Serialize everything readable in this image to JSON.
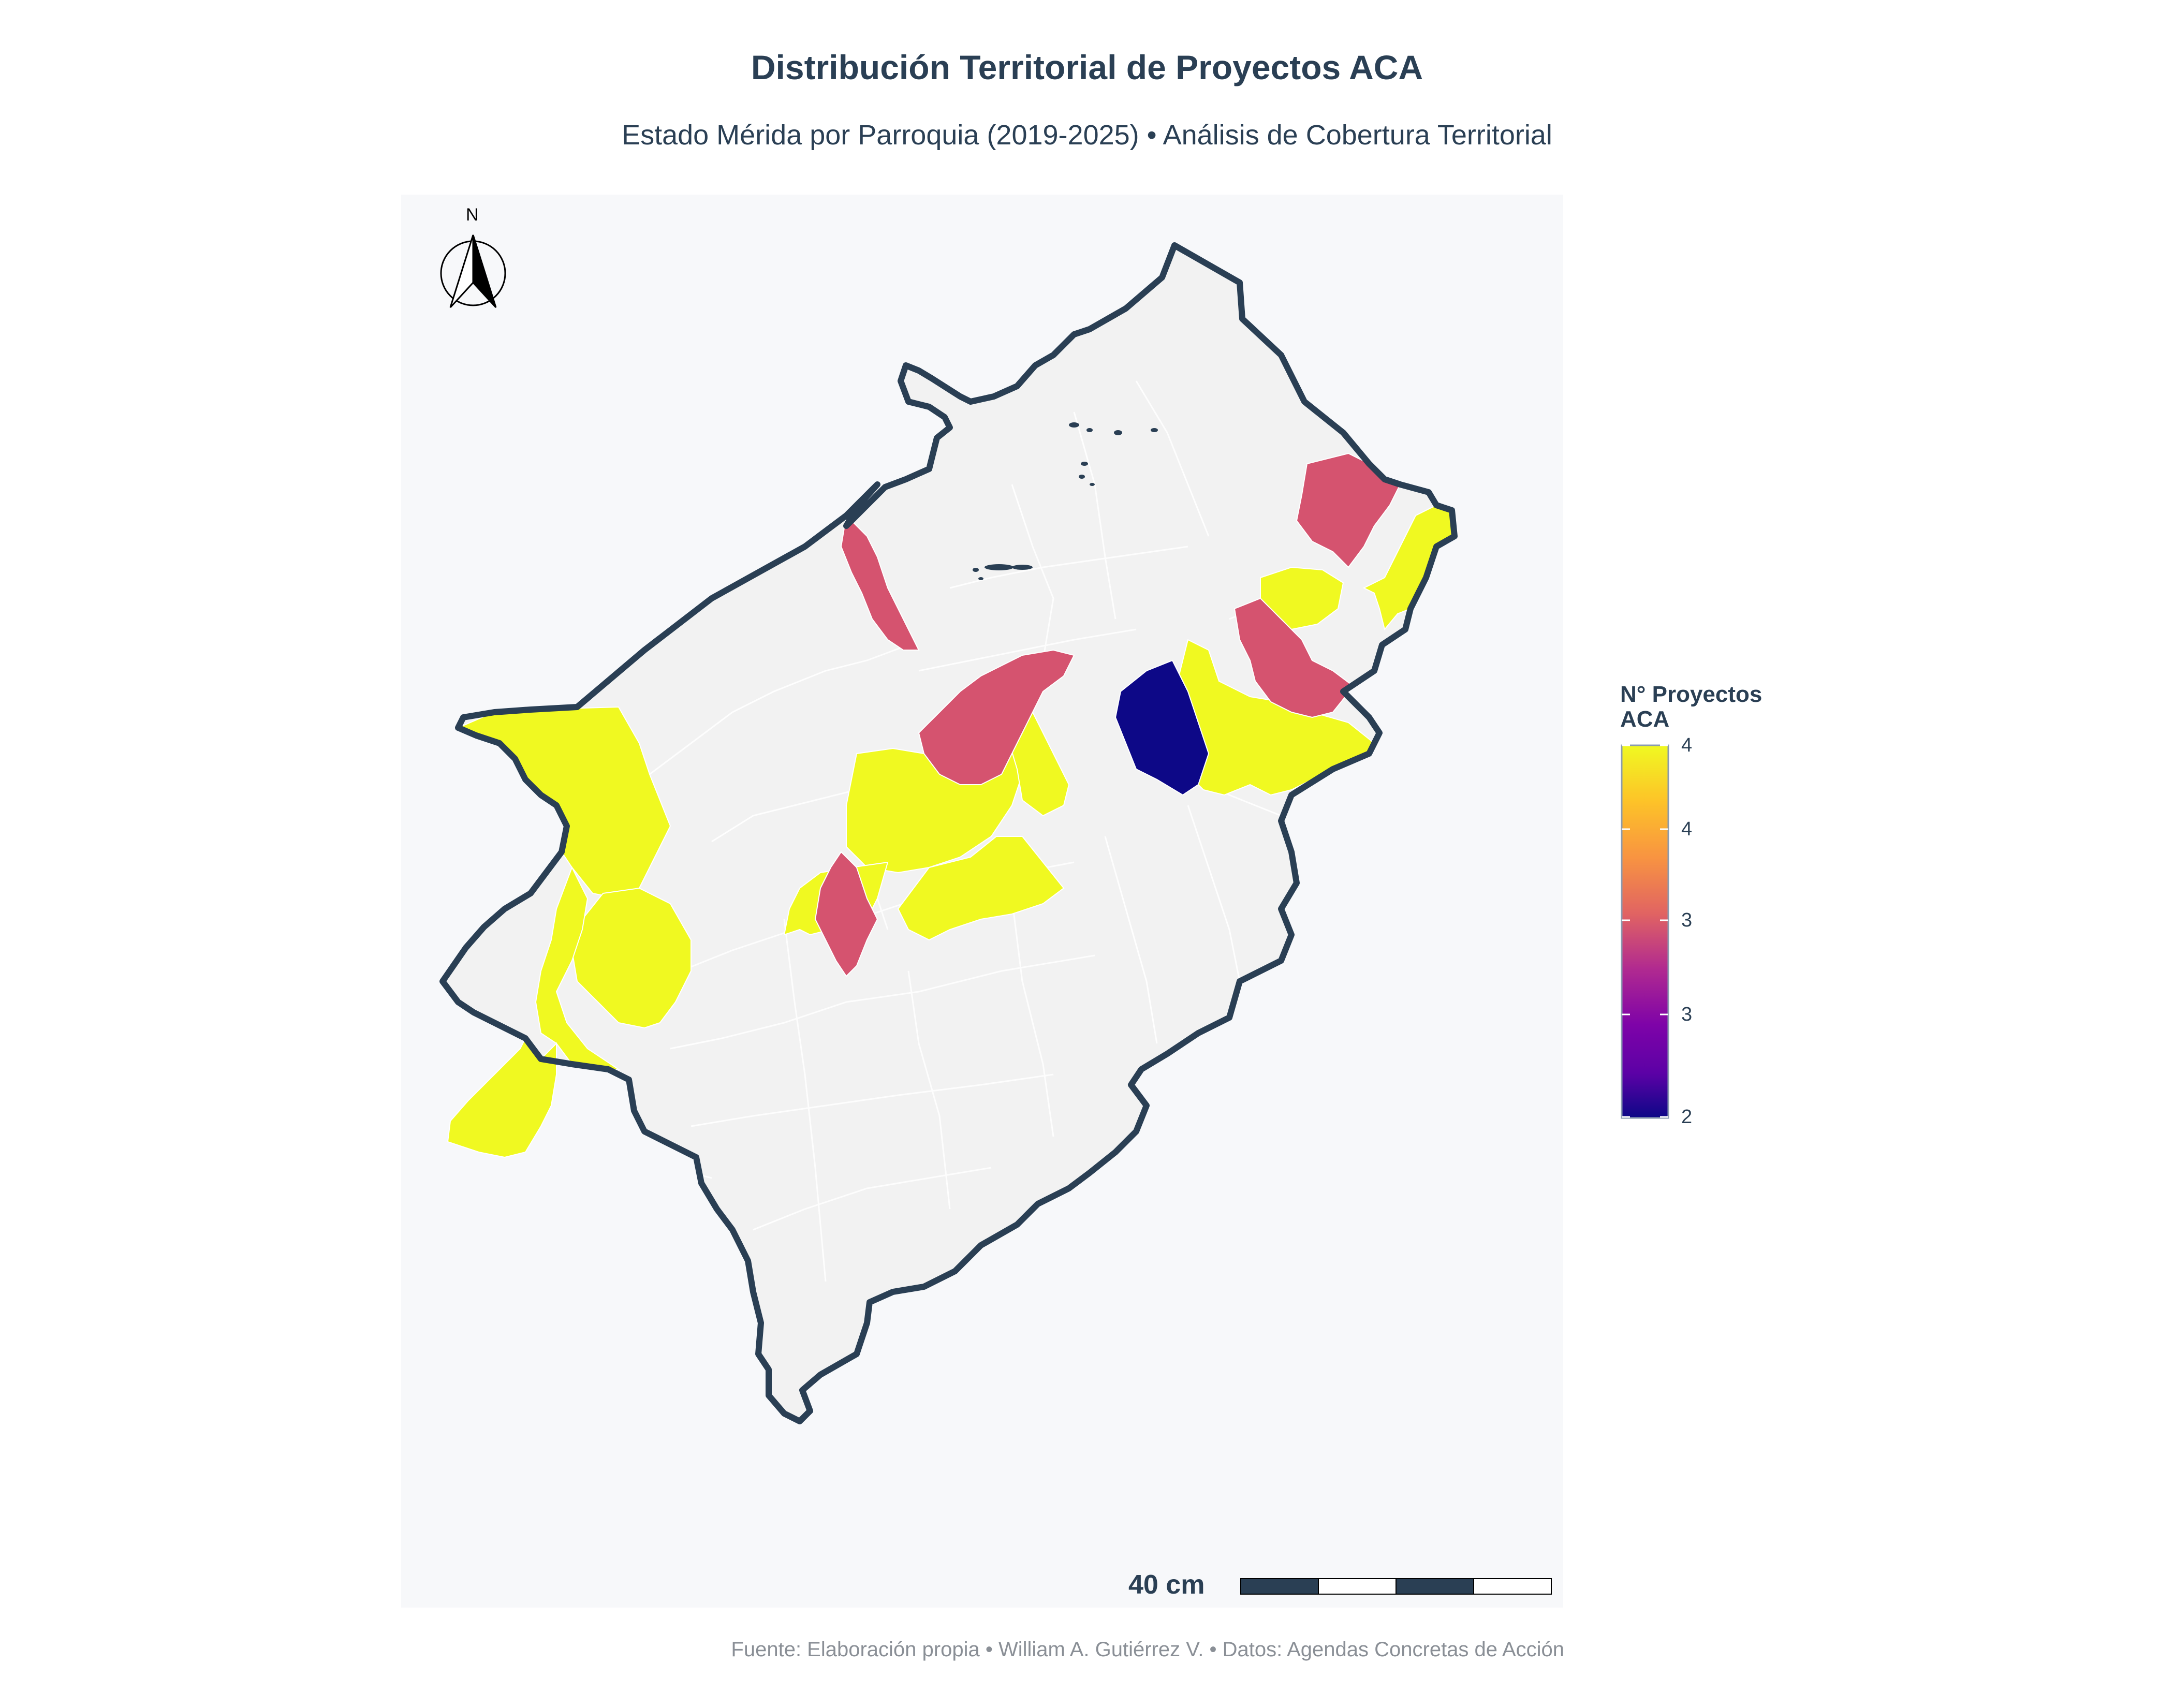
{
  "title": "Distribución Territorial de Proyectos ACA",
  "subtitle": "Estado Mérida por Parroquia (2019-2025) • Análisis de Cobertura Territorial",
  "north_arrow": {
    "label": "N",
    "icon": "north-arrow-icon"
  },
  "scale_bar": {
    "label": "40 cm"
  },
  "colorbar": {
    "title_lines": [
      "N° Proyectos",
      "ACA"
    ],
    "ticks": [
      "4",
      "4",
      "3",
      "3",
      "2"
    ],
    "range": [
      2,
      4
    ],
    "colorscale": "plasma",
    "colors": {
      "min": "#0d0887",
      "mid": "#d5536f",
      "max": "#f0f921"
    }
  },
  "chart_data": {
    "type": "choropleth",
    "region": "Estado Mérida",
    "legend_position": "right",
    "base_color": "#f2f2f2",
    "outline_color": "#2a3f54",
    "parishes_with_projects": [
      {
        "value": 4,
        "color": "#f0f921"
      },
      {
        "value": 4,
        "color": "#f0f921"
      },
      {
        "value": 4,
        "color": "#f0f921"
      },
      {
        "value": 4,
        "color": "#f0f921"
      },
      {
        "value": 4,
        "color": "#f0f921"
      },
      {
        "value": 4,
        "color": "#f0f921"
      },
      {
        "value": 4,
        "color": "#f0f921"
      },
      {
        "value": 4,
        "color": "#f0f921"
      },
      {
        "value": 4,
        "color": "#f0f921"
      },
      {
        "value": 4,
        "color": "#f0f921"
      },
      {
        "value": 4,
        "color": "#f0f921"
      },
      {
        "value": 3,
        "color": "#d5536f"
      },
      {
        "value": 3,
        "color": "#d5536f"
      },
      {
        "value": 3,
        "color": "#d5536f"
      },
      {
        "value": 3,
        "color": "#d5536f"
      },
      {
        "value": 3,
        "color": "#d5536f"
      },
      {
        "value": 2,
        "color": "#0d0887"
      }
    ]
  },
  "source": "Fuente: Elaboración propia • William A. Gutiérrez V. • Datos: Agendas Concretas de Acción"
}
